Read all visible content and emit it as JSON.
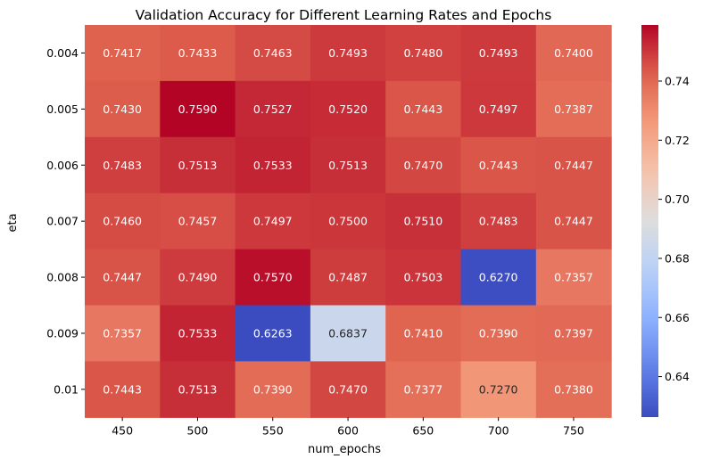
{
  "chart_data": {
    "type": "heatmap",
    "title": "Validation Accuracy for Different Learning Rates and Epochs",
    "xlabel": "num_epochs",
    "ylabel": "eta",
    "x_categories": [
      "450",
      "500",
      "550",
      "600",
      "650",
      "700",
      "750"
    ],
    "y_categories": [
      "0.004",
      "0.005",
      "0.006",
      "0.007",
      "0.008",
      "0.009",
      "0.01"
    ],
    "values": [
      [
        0.7417,
        0.7433,
        0.7463,
        0.7493,
        0.748,
        0.7493,
        0.74
      ],
      [
        0.743,
        0.759,
        0.7527,
        0.752,
        0.7443,
        0.7497,
        0.7387
      ],
      [
        0.7483,
        0.7513,
        0.7533,
        0.7513,
        0.747,
        0.7443,
        0.7447
      ],
      [
        0.746,
        0.7457,
        0.7497,
        0.75,
        0.751,
        0.7483,
        0.7447
      ],
      [
        0.7447,
        0.749,
        0.757,
        0.7487,
        0.7503,
        0.627,
        0.7357
      ],
      [
        0.7357,
        0.7533,
        0.6263,
        0.6837,
        0.741,
        0.739,
        0.7397
      ],
      [
        0.7443,
        0.7513,
        0.739,
        0.747,
        0.7377,
        0.727,
        0.738
      ]
    ],
    "value_format_decimals": 4,
    "colormap": "coolwarm",
    "color_range": [
      0.6263,
      0.759
    ],
    "colorbar": {
      "ticks": [
        0.64,
        0.66,
        0.68,
        0.7,
        0.72,
        0.74
      ],
      "tick_labels": [
        "0.64",
        "0.66",
        "0.68",
        "0.70",
        "0.72",
        "0.74"
      ]
    },
    "grid": false,
    "legend": "colorbar-right"
  }
}
